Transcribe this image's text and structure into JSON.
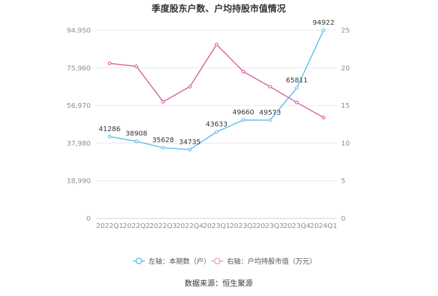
{
  "chart_data": {
    "type": "line",
    "title": "季度股东户数、户均持股市值情况",
    "categories": [
      "2022Q1",
      "2022Q2",
      "2022Q3",
      "2022Q4",
      "2023Q1",
      "2023Q2",
      "2023Q3",
      "2023Q4",
      "2024Q1"
    ],
    "left_axis": {
      "ticks": [
        "0",
        "18,990",
        "37,980",
        "56,970",
        "75,960",
        "94,950"
      ],
      "ylim": [
        0,
        94950
      ]
    },
    "right_axis": {
      "ticks": [
        "0",
        "5",
        "10",
        "15",
        "20",
        "25"
      ],
      "ylim": [
        0,
        25
      ]
    },
    "series": [
      {
        "name": "左轴：本期数（户）",
        "axis": "left",
        "color": "#5bc0eb",
        "values": [
          41286,
          38908,
          35628,
          34735,
          43633,
          49660,
          49573,
          65811,
          94922
        ],
        "labels": [
          "41286",
          "38908",
          "35628",
          "34735",
          "43633",
          "49660",
          "49573",
          "65811",
          "94922"
        ]
      },
      {
        "name": "右轴：户均持股市值（万元）",
        "axis": "right",
        "color": "#d9609f",
        "values": [
          20.6,
          20.2,
          15.5,
          17.5,
          23.1,
          19.5,
          17.5,
          15.4,
          13.4
        ]
      }
    ],
    "grid": true,
    "legend_position": "bottom"
  },
  "source": "数据来源：恒生聚源"
}
